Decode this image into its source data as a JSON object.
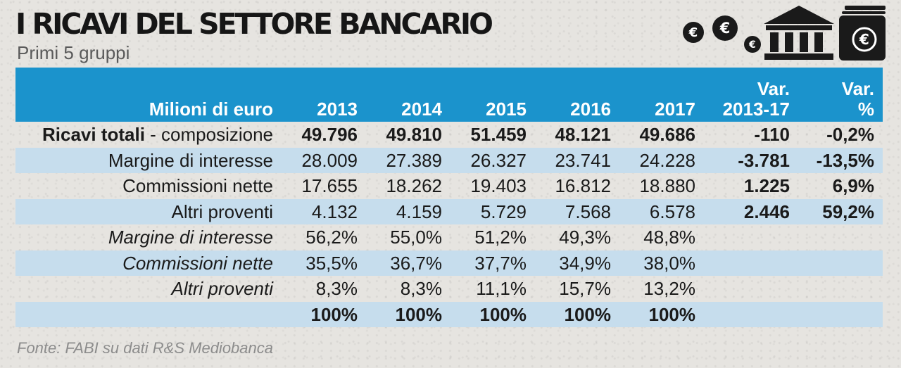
{
  "title": "I RICAVI DEL SETTORE BANCARIO",
  "subtitle": "Primi 5 gruppi",
  "source": "Fonte: FABI su dati R&S Mediobanca",
  "icons": {
    "coin_symbol": "€",
    "names": [
      "euro-coin-icon",
      "bank-building-icon",
      "euro-banknotes-icon"
    ]
  },
  "colors": {
    "header_bg": "#1b93cc",
    "band_bg": "#c6dded",
    "header_text": "#ffffff"
  },
  "chart_data": {
    "type": "table",
    "title": "I RICAVI DEL SETTORE BANCARIO",
    "subtitle": "Primi 5 gruppi",
    "columns": [
      "Milioni di euro",
      "2013",
      "2014",
      "2015",
      "2016",
      "2017",
      [
        "Var.",
        "2013-17"
      ],
      [
        "Var.",
        "%"
      ]
    ],
    "rows": [
      {
        "label_bold": "Ricavi totali",
        "label_rest": " - composizione",
        "italic": false,
        "bold_values": true,
        "band": false,
        "values": [
          "49.796",
          "49.810",
          "51.459",
          "48.121",
          "49.686",
          "-110",
          "-0,2%"
        ]
      },
      {
        "label_rest": "Margine di interesse",
        "italic": false,
        "bold_values": false,
        "band": true,
        "values": [
          "28.009",
          "27.389",
          "26.327",
          "23.741",
          "24.228",
          "-3.781",
          "-13,5%"
        ]
      },
      {
        "label_rest": "Commissioni nette",
        "italic": false,
        "bold_values": false,
        "band": false,
        "values": [
          "17.655",
          "18.262",
          "19.403",
          "16.812",
          "18.880",
          "1.225",
          "6,9%"
        ]
      },
      {
        "label_rest": "Altri proventi",
        "italic": false,
        "bold_values": false,
        "band": true,
        "values": [
          "4.132",
          "4.159",
          "5.729",
          "7.568",
          "6.578",
          "2.446",
          "59,2%"
        ]
      },
      {
        "label_rest": "Margine di interesse",
        "italic": true,
        "bold_values": false,
        "band": false,
        "values": [
          "56,2%",
          "55,0%",
          "51,2%",
          "49,3%",
          "48,8%",
          "",
          ""
        ]
      },
      {
        "label_rest": "Commissioni nette",
        "italic": true,
        "bold_values": false,
        "band": true,
        "values": [
          "35,5%",
          "36,7%",
          "37,7%",
          "34,9%",
          "38,0%",
          "",
          ""
        ]
      },
      {
        "label_rest": "Altri proventi",
        "italic": true,
        "bold_values": false,
        "band": false,
        "values": [
          "8,3%",
          "8,3%",
          "11,1%",
          "15,7%",
          "13,2%",
          "",
          ""
        ]
      },
      {
        "label_rest": "",
        "italic": false,
        "bold_values": true,
        "band": true,
        "values": [
          "100%",
          "100%",
          "100%",
          "100%",
          "100%",
          "",
          ""
        ]
      }
    ]
  }
}
